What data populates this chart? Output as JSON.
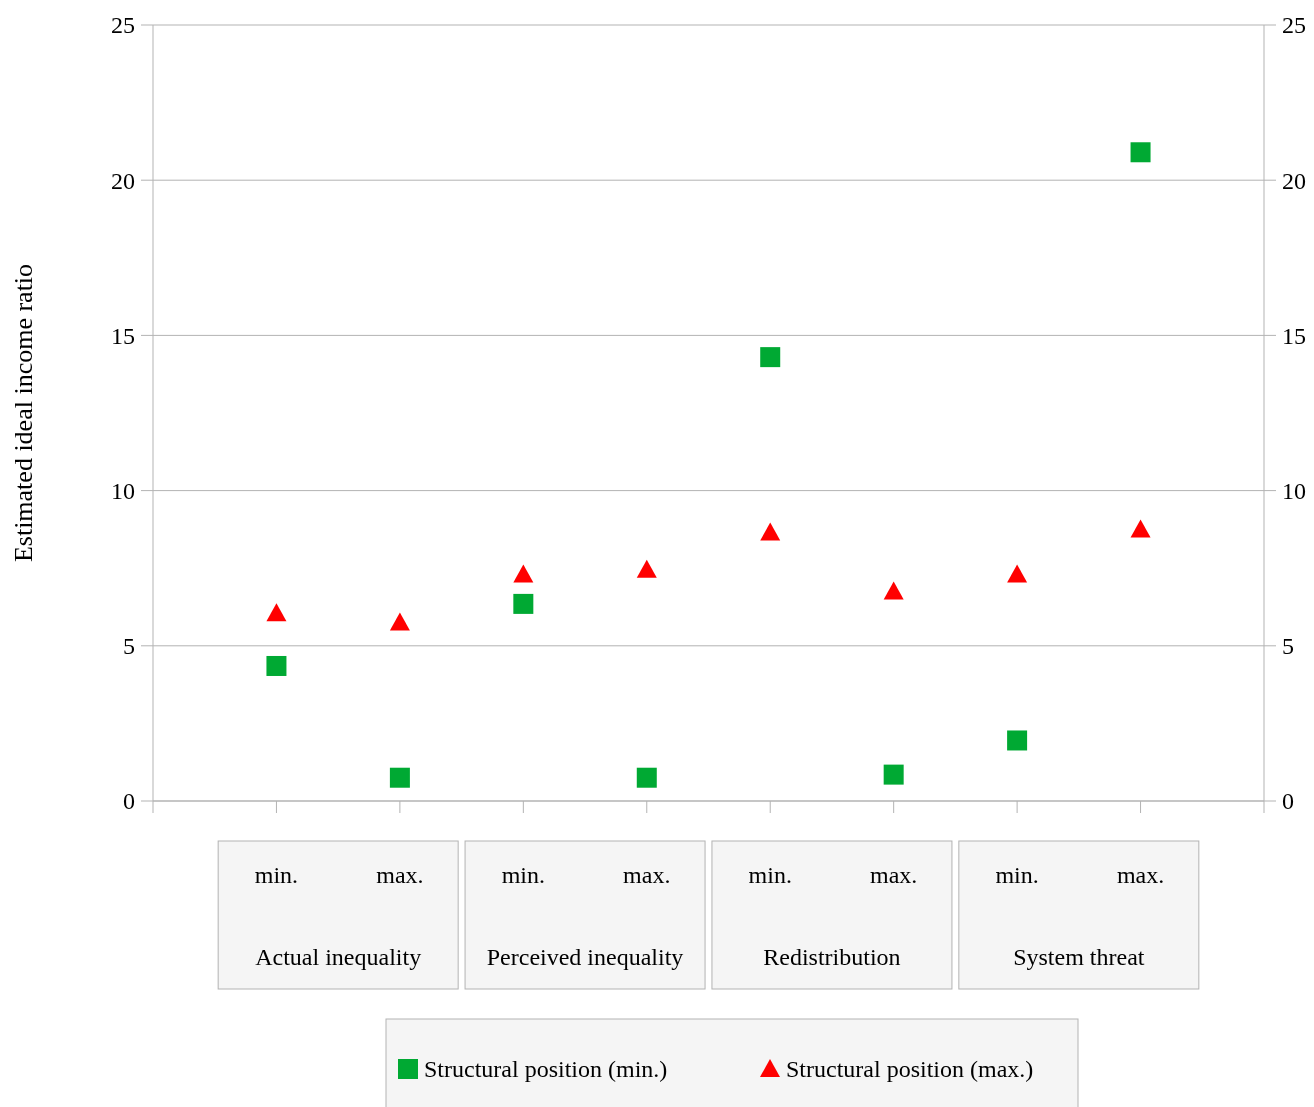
{
  "chart_data": {
    "type": "scatter",
    "ylabel": "Estimated ideal income ratio",
    "categories": [
      "min.",
      "max.",
      "min.",
      "max.",
      "min.",
      "max.",
      "min.",
      "max."
    ],
    "annotations": [
      "Actual inequality",
      "Perceived inequality",
      "Redistribution",
      "System threat"
    ],
    "series": [
      {
        "name": "Structural position (min.)",
        "color": "#00a933",
        "marker": "square",
        "values": [
          4.35,
          0.75,
          6.35,
          0.75,
          14.3,
          0.85,
          1.95,
          20.9
        ]
      },
      {
        "name": "Structural position (max.)",
        "color": "#ff0000",
        "marker": "triangle",
        "values": [
          6.05,
          5.75,
          7.3,
          7.45,
          8.65,
          6.75,
          7.3,
          8.75
        ]
      }
    ],
    "ylim": [
      0,
      25
    ],
    "yticks": [
      0,
      5,
      10,
      15,
      20,
      25
    ],
    "y2lim": [
      0,
      25
    ],
    "y2ticks": [
      0,
      5,
      10,
      15,
      20,
      25
    ],
    "grid": "y",
    "legend": "bottom"
  }
}
